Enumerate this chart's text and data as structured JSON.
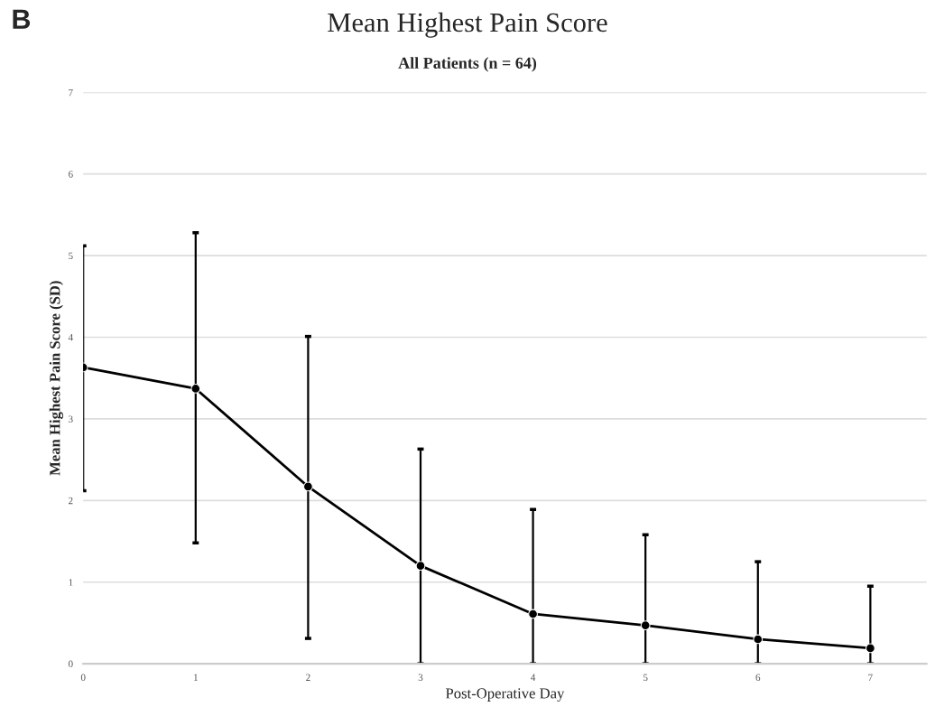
{
  "chart_data": {
    "type": "line",
    "title": "Mean Highest Pain Score",
    "subtitle": "All Patients (n = 64)",
    "xlabel": "Post-Operative Day",
    "ylabel": "Mean Highest Pain Score (SD)",
    "annotations": [
      "B"
    ],
    "x": [
      0,
      1,
      2,
      3,
      4,
      5,
      6,
      7
    ],
    "series": [
      {
        "color": "#000000",
        "values": [
          3.63,
          3.37,
          2.17,
          1.2,
          0.61,
          0.47,
          0.3,
          0.19
        ],
        "errors": [
          [
            2.12,
            5.12
          ],
          [
            1.48,
            5.28
          ],
          [
            0.31,
            4.01
          ],
          [
            0,
            2.63
          ],
          [
            0,
            1.89
          ],
          [
            0,
            1.58
          ],
          [
            0,
            1.25
          ],
          [
            0,
            0.95
          ]
        ]
      }
    ],
    "xlim": [
      0,
      7.5
    ],
    "xticks": [
      0,
      1,
      2,
      3,
      4,
      5,
      6,
      7
    ],
    "ylim": [
      0,
      7
    ],
    "yticks": [
      0,
      1,
      2,
      3,
      4,
      5,
      6,
      7
    ],
    "grid": "y",
    "marker": "circle",
    "line_style": "solid"
  }
}
